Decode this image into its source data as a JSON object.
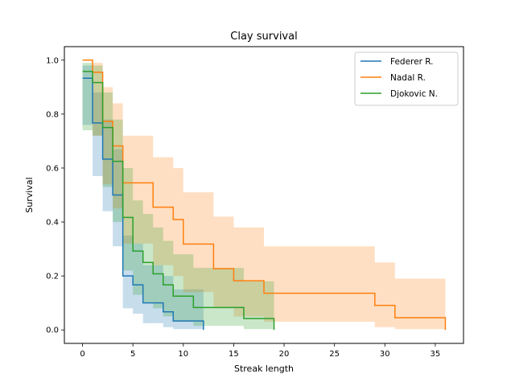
{
  "chart_data": {
    "type": "line",
    "step": true,
    "title": "Clay survival",
    "xlabel": "Streak length",
    "ylabel": "Survival",
    "xlim": [
      -1.8,
      37.8
    ],
    "ylim": [
      -0.05,
      1.05
    ],
    "xticks": [
      0,
      5,
      10,
      15,
      20,
      25,
      30,
      35
    ],
    "xtick_labels": [
      "0",
      "5",
      "10",
      "15",
      "20",
      "25",
      "30",
      "35"
    ],
    "yticks": [
      0.0,
      0.2,
      0.4,
      0.6,
      0.8,
      1.0
    ],
    "ytick_labels": [
      "0.0",
      "0.2",
      "0.4",
      "0.6",
      "0.8",
      "1.0"
    ],
    "grid": false,
    "legend_position": "top-right",
    "confidence_band_opacity": 0.25,
    "series": [
      {
        "name": "Federer R.",
        "color": "#1f77b4",
        "x": [
          0,
          1,
          2,
          3,
          4,
          5,
          6,
          8,
          9,
          12
        ],
        "y": [
          0.933,
          0.767,
          0.633,
          0.5,
          0.2,
          0.167,
          0.1,
          0.067,
          0.033,
          0.0
        ],
        "ci_lower": [
          0.76,
          0.57,
          0.44,
          0.31,
          0.08,
          0.06,
          0.025,
          0.01,
          0.003,
          0.0
        ],
        "ci_upper": [
          0.98,
          0.88,
          0.78,
          0.67,
          0.35,
          0.32,
          0.24,
          0.2,
          0.15,
          0.15
        ]
      },
      {
        "name": "Nadal R.",
        "color": "#ff7f0e",
        "x": [
          0,
          1,
          2,
          3,
          4,
          7,
          9,
          10,
          13,
          15,
          18,
          29,
          31,
          36
        ],
        "y": [
          1.0,
          0.955,
          0.773,
          0.682,
          0.545,
          0.455,
          0.409,
          0.318,
          0.227,
          0.182,
          0.136,
          0.091,
          0.045,
          0.0
        ],
        "ci_lower": [
          1.0,
          0.72,
          0.54,
          0.45,
          0.32,
          0.24,
          0.2,
          0.14,
          0.08,
          0.05,
          0.03,
          0.01,
          0.003,
          0.0
        ],
        "ci_upper": [
          1.0,
          0.99,
          0.9,
          0.84,
          0.72,
          0.64,
          0.6,
          0.51,
          0.42,
          0.38,
          0.31,
          0.25,
          0.19,
          0.19
        ]
      },
      {
        "name": "Djokovic N.",
        "color": "#2ca02c",
        "x": [
          0,
          1,
          2,
          3,
          4,
          5,
          6,
          7,
          8,
          9,
          11,
          16,
          19
        ],
        "y": [
          0.958,
          0.917,
          0.75,
          0.625,
          0.417,
          0.292,
          0.25,
          0.208,
          0.167,
          0.125,
          0.083,
          0.042,
          0.0
        ],
        "ci_lower": [
          0.74,
          0.72,
          0.53,
          0.4,
          0.22,
          0.13,
          0.1,
          0.08,
          0.05,
          0.03,
          0.015,
          0.003,
          0.0
        ],
        "ci_upper": [
          0.99,
          0.98,
          0.88,
          0.78,
          0.6,
          0.48,
          0.43,
          0.38,
          0.33,
          0.28,
          0.23,
          0.18,
          0.18
        ]
      }
    ]
  }
}
